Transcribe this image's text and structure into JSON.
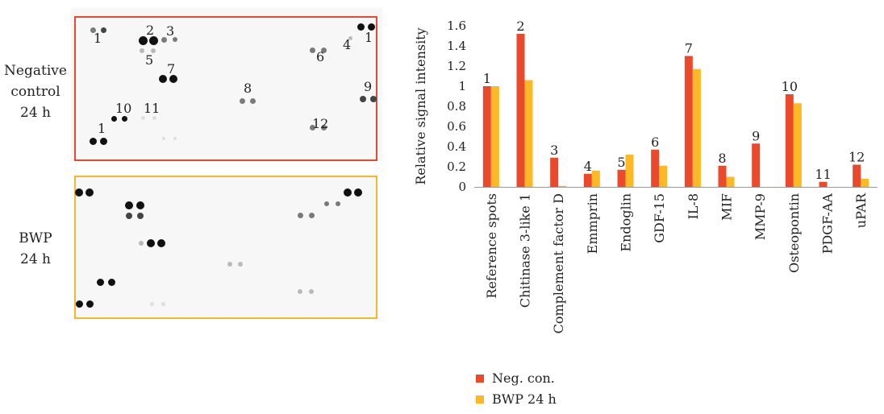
{
  "blot": {
    "row1_label": [
      "Negative",
      "control",
      "24 h"
    ],
    "row2_label": [
      "BWP",
      "24 h"
    ],
    "neg_border_color": "#e84a2f",
    "bwp_border_color": "#f7b62b",
    "spot_numbers": [
      "1",
      "2",
      "3",
      "1",
      "4",
      "5",
      "6",
      "7",
      "8",
      "9",
      "10",
      "11",
      "12",
      "1"
    ]
  },
  "chart_data": {
    "type": "bar",
    "ylabel": "Relative signal intensity",
    "ylim": [
      0,
      1.6
    ],
    "yticks": [
      "0",
      "0.2",
      "0.4",
      "0.6",
      "0.8",
      "1",
      "1.2",
      "1.4",
      "1.6"
    ],
    "categories": [
      "Reference spots",
      "Chitinase 3-like 1",
      "Complement factor D",
      "Emmprin",
      "Endoglin",
      "GDF-15",
      "IL-8",
      "MIF",
      "MMP-9",
      "Osteopontin",
      "PDGF-AA",
      "uPAR"
    ],
    "bar_labels": [
      "1",
      "2",
      "3",
      "4",
      "5",
      "6",
      "7",
      "8",
      "9",
      "10",
      "11",
      "12"
    ],
    "series": [
      {
        "name": "Neg. con.",
        "color": "#ea4a2b",
        "values": [
          1.0,
          1.52,
          0.29,
          0.13,
          0.17,
          0.37,
          1.3,
          0.21,
          0.43,
          0.92,
          0.05,
          0.22
        ]
      },
      {
        "name": "BWP 24 h",
        "color": "#fdb925",
        "values": [
          1.0,
          1.06,
          0.01,
          0.16,
          0.32,
          0.21,
          1.17,
          0.1,
          0.0,
          0.83,
          0.0,
          0.08
        ]
      }
    ]
  }
}
